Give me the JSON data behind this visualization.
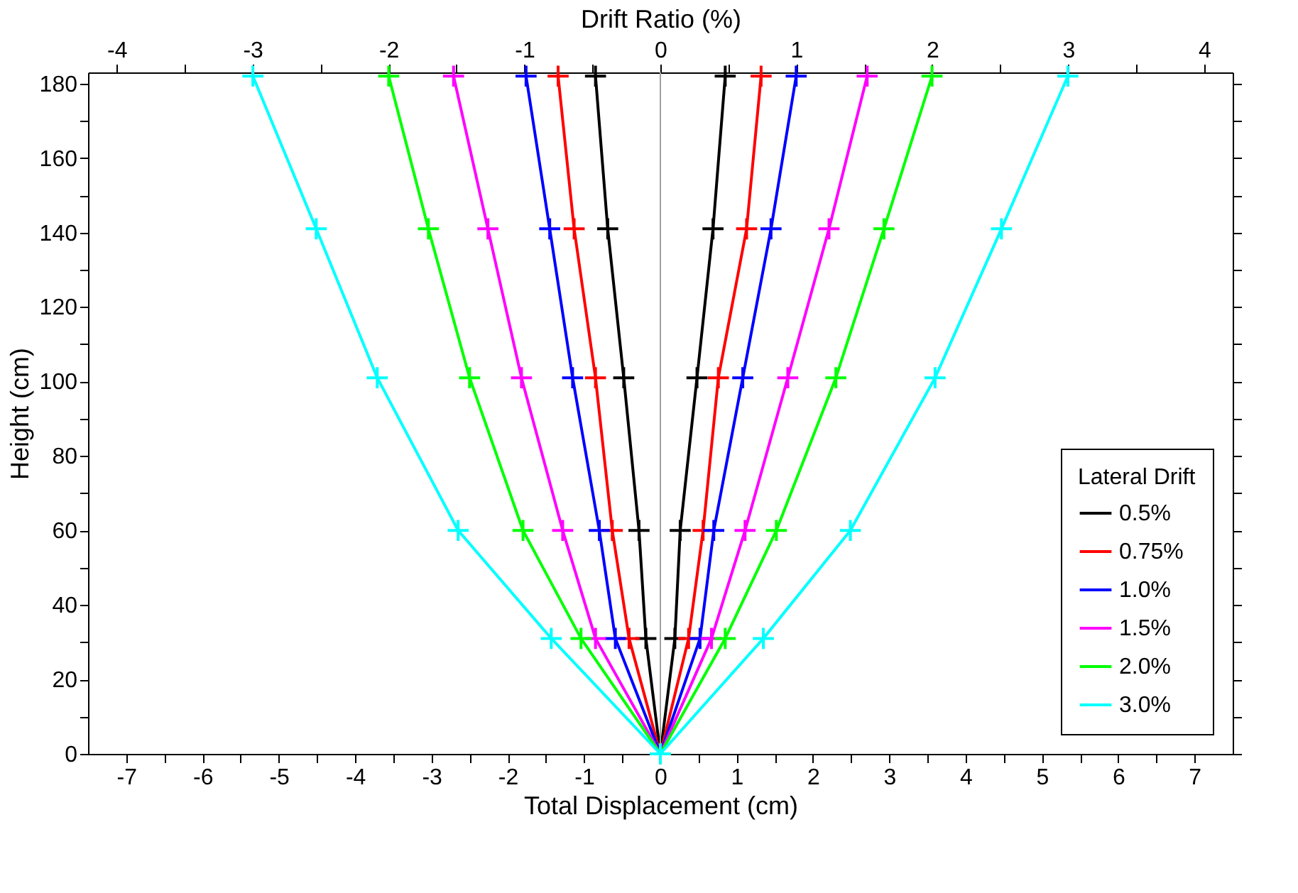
{
  "chart_data": {
    "type": "line",
    "xlabel": "Total Displacement (cm)",
    "ylabel": "Height (cm)",
    "x2label": "Drift Ratio (%)",
    "legend_title": "Lateral Drift",
    "legend": "bottom right",
    "marker": "cross",
    "line_style": "solid",
    "grid": false,
    "xlim": [
      -7.5,
      7.5
    ],
    "ylim": [
      0,
      183
    ],
    "x2lim": [
      -4.21,
      4.21
    ],
    "xticks": [
      -7,
      {
        "value": -6.5,
        "label": null
      },
      -6,
      {
        "value": -5.5,
        "label": null
      },
      -5,
      {
        "value": -4.5,
        "label": null
      },
      -4,
      {
        "value": -3.5,
        "label": null
      },
      -3,
      {
        "value": -2.5,
        "label": null
      },
      -2,
      {
        "value": -1.5,
        "label": null
      },
      -1,
      {
        "value": -0.5,
        "label": null
      },
      0,
      {
        "value": 0.5,
        "label": null
      },
      1,
      {
        "value": 1.5,
        "label": null
      },
      2,
      {
        "value": 2.5,
        "label": null
      },
      3,
      {
        "value": 3.5,
        "label": null
      },
      4,
      {
        "value": 4.5,
        "label": null
      },
      5,
      {
        "value": 5.5,
        "label": null
      },
      6,
      {
        "value": 6.5,
        "label": null
      },
      7
    ],
    "x2ticks": [
      -4,
      {
        "value": -3.5,
        "label": null
      },
      -3,
      {
        "value": -2.5,
        "label": null
      },
      -2,
      {
        "value": -1.5,
        "label": null
      },
      -1,
      {
        "value": -0.5,
        "label": null
      },
      0,
      {
        "value": 0.5,
        "label": null
      },
      1,
      {
        "value": 1.5,
        "label": null
      },
      2,
      {
        "value": 2.5,
        "label": null
      },
      3,
      {
        "value": 3.5,
        "label": null
      },
      4
    ],
    "yticks": [
      0,
      {
        "value": 10,
        "label": null
      },
      20,
      {
        "value": 30,
        "label": null
      },
      40,
      {
        "value": 50,
        "label": null
      },
      60,
      {
        "value": 70,
        "label": null
      },
      80,
      {
        "value": 90,
        "label": null
      },
      100,
      {
        "value": 110,
        "label": null
      },
      120,
      {
        "value": 130,
        "label": null
      },
      140,
      {
        "value": 150,
        "label": null
      },
      160,
      {
        "value": 170,
        "label": null
      },
      180
    ],
    "ref_lines": [
      {
        "axis": "x",
        "value": 0,
        "color": "#a0a0a0"
      }
    ],
    "series": [
      {
        "name": "0.5%",
        "color": "#000000",
        "x": [
          -0.85,
          -0.69,
          -0.48,
          -0.28,
          -0.19,
          0,
          0.19,
          0.26,
          0.48,
          0.69,
          0.85
        ],
        "values": [
          182,
          141,
          101,
          60,
          31,
          0,
          31,
          60,
          101,
          141,
          182
        ]
      },
      {
        "name": "0.75%",
        "color": "#ff0000",
        "x": [
          -1.34,
          -1.13,
          -0.85,
          -0.63,
          -0.41,
          0,
          0.37,
          0.56,
          0.76,
          1.13,
          1.32
        ],
        "values": [
          182,
          141,
          101,
          60,
          31,
          0,
          31,
          60,
          101,
          141,
          182
        ]
      },
      {
        "name": "1.0%",
        "color": "#0000ff",
        "x": [
          -1.76,
          -1.45,
          -1.15,
          -0.8,
          -0.59,
          0,
          0.52,
          0.7,
          1.08,
          1.45,
          1.78
        ],
        "values": [
          182,
          141,
          101,
          60,
          31,
          0,
          31,
          60,
          101,
          141,
          182
        ]
      },
      {
        "name": "1.5%",
        "color": "#ff00ff",
        "x": [
          -2.71,
          -2.26,
          -1.82,
          -1.28,
          -0.85,
          0,
          0.67,
          1.11,
          1.67,
          2.21,
          2.71
        ],
        "values": [
          182,
          141,
          101,
          60,
          31,
          0,
          31,
          60,
          101,
          141,
          182
        ]
      },
      {
        "name": "2.0%",
        "color": "#00ff00",
        "x": [
          -3.56,
          -3.04,
          -2.5,
          -1.8,
          -1.04,
          0,
          0.85,
          1.52,
          2.3,
          2.93,
          3.56
        ],
        "values": [
          182,
          141,
          101,
          60,
          31,
          0,
          31,
          60,
          101,
          141,
          182
        ]
      },
      {
        "name": "3.0%",
        "color": "#00ffff",
        "x": [
          -5.34,
          -4.51,
          -3.71,
          -2.65,
          -1.43,
          0,
          1.35,
          2.49,
          3.6,
          4.47,
          5.34
        ],
        "values": [
          182,
          141,
          101,
          60,
          31,
          0,
          31,
          60,
          101,
          141,
          182
        ]
      }
    ]
  }
}
